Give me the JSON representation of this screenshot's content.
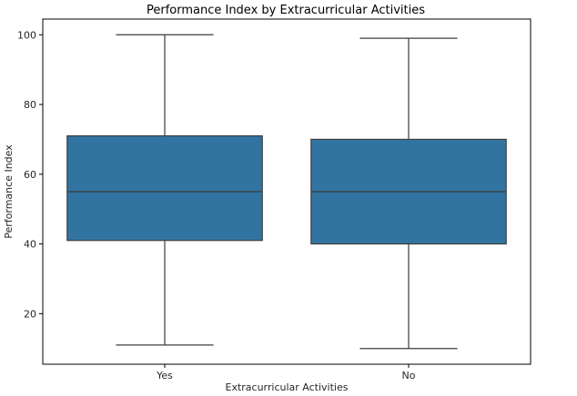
{
  "chart_data": {
    "type": "box",
    "title": "Performance Index by Extracurricular Activities",
    "xlabel": "Extracurricular Activities",
    "ylabel": "Performance Index",
    "ylim": [
      5.5,
      104.5
    ],
    "yticks": [
      20,
      40,
      60,
      80,
      100
    ],
    "grid": false,
    "categories": [
      "Yes",
      "No"
    ],
    "boxes": [
      {
        "category": "Yes",
        "whisker_low": 11,
        "q1": 41,
        "median": 55,
        "q3": 71,
        "whisker_high": 100
      },
      {
        "category": "No",
        "whisker_low": 10,
        "q1": 40,
        "median": 55,
        "q3": 70,
        "whisker_high": 99
      }
    ],
    "colors": {
      "box_fill": "#3274a1",
      "line": "#3d3d3d",
      "axis": "#000000",
      "text": "#262626"
    }
  }
}
